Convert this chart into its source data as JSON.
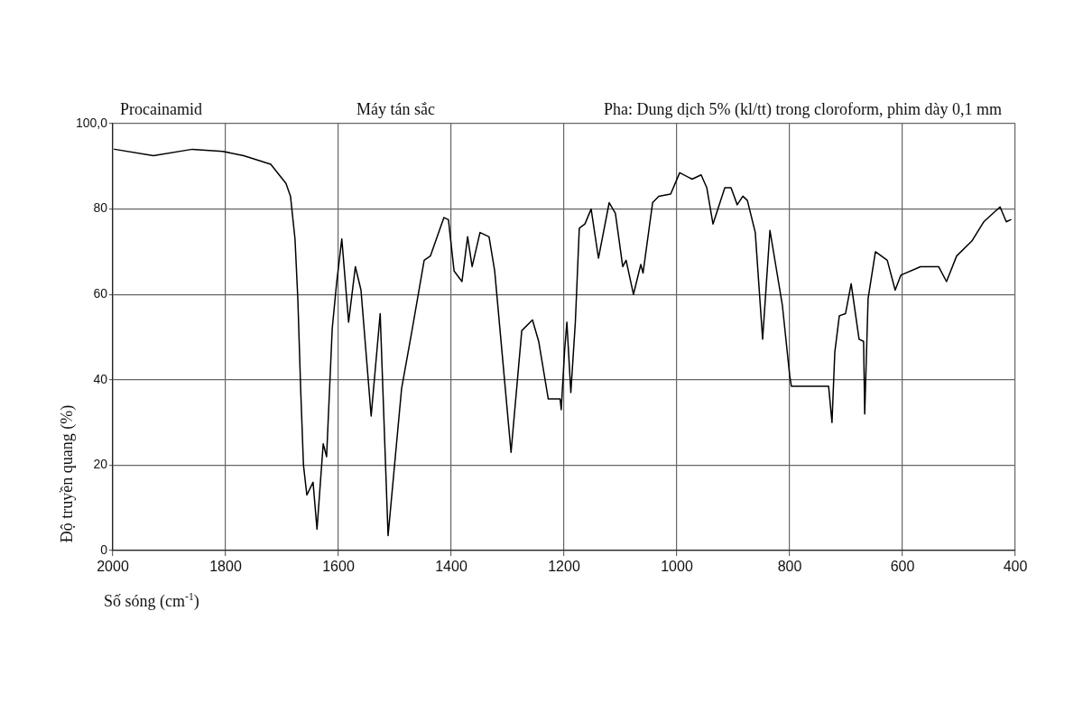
{
  "chart_data": {
    "type": "line",
    "title": "Procainamid",
    "annotations": [
      "Máy tán sắc",
      "Pha: Dung dịch 5% (kl/tt) trong cloroform, phim dày 0,1 mm"
    ],
    "xlabel": "Số sóng (cm$^{-1}$)",
    "ylabel": "Độ truyền quang (%)",
    "xlim": [
      2000,
      400
    ],
    "xticks": [
      2000,
      1800,
      1600,
      1400,
      1200,
      1000,
      800,
      600,
      400
    ],
    "ylim": [
      0,
      100
    ],
    "yticks": [
      0,
      20,
      40,
      60,
      80,
      {
        "value": 100,
        "label": "100,0"
      }
    ],
    "grid": true,
    "marker": "none",
    "line_style": "solid",
    "series": [
      {
        "color": "#000000",
        "x": [
          1997,
          1928,
          1859,
          1805,
          1768,
          1720,
          1693,
          1685,
          1677,
          1672,
          1667,
          1662,
          1656,
          1645,
          1638,
          1627,
          1621,
          1611,
          1603,
          1594,
          1582,
          1570,
          1560,
          1542,
          1526,
          1512,
          1488,
          1469,
          1448,
          1437,
          1413,
          1405,
          1395,
          1381,
          1371,
          1363,
          1349,
          1333,
          1323,
          1309,
          1294,
          1275,
          1256,
          1245,
          1228,
          1207,
          1205,
          1199,
          1195,
          1188,
          1180,
          1173,
          1163,
          1152,
          1139,
          1120,
          1109,
          1096,
          1090,
          1077,
          1064,
          1060,
          1043,
          1032,
          1011,
          995,
          973,
          957,
          947,
          936,
          915,
          904,
          893,
          883,
          875,
          861,
          848,
          835,
          813,
          800,
          797,
          731,
          725,
          720,
          712,
          701,
          691,
          677,
          669,
          667,
          661,
          648,
          627,
          613,
          603,
          568,
          536,
          522,
          504,
          477,
          456,
          427,
          416,
          408
        ],
        "values": [
          94,
          92.5,
          94,
          93.5,
          92.5,
          90.5,
          86,
          83,
          73,
          59,
          38,
          20,
          13,
          16,
          5,
          25,
          22,
          52,
          63,
          73,
          53.5,
          66.5,
          61,
          31.5,
          55.5,
          3.5,
          38,
          52,
          68,
          69,
          78,
          77.5,
          65.5,
          63,
          73.5,
          66.5,
          74.5,
          73.5,
          65.5,
          45,
          23,
          51.5,
          54,
          49,
          35.5,
          35.5,
          33,
          47,
          53.5,
          37,
          53.5,
          75.5,
          76.5,
          80,
          68.5,
          81.5,
          79,
          66.5,
          68,
          60,
          67,
          65,
          81.5,
          83,
          83.5,
          88.5,
          87,
          88,
          85,
          76.5,
          85,
          85,
          81,
          83,
          82,
          74.5,
          49.5,
          75,
          57.5,
          41,
          38.5,
          38.5,
          30,
          46.5,
          55,
          55.5,
          62.5,
          49.5,
          49,
          32,
          59,
          70,
          68,
          61,
          64.5,
          66.5,
          66.5,
          63,
          69,
          72.5,
          77,
          80.5,
          77,
          77.5
        ]
      }
    ]
  }
}
